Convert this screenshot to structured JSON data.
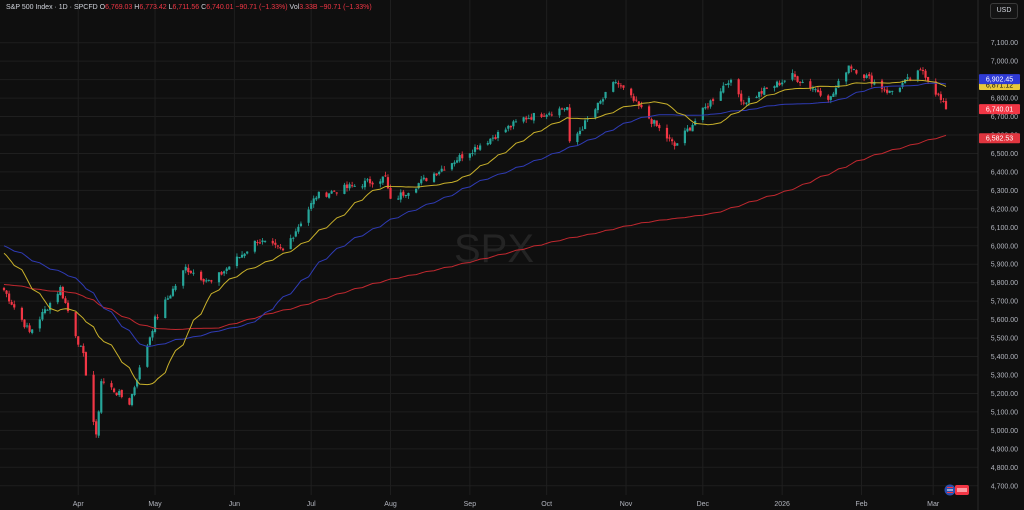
{
  "header": {
    "symbol": "S&P 500 Index · 1D · SPCFD",
    "open_label": "O",
    "open": "6,769.03",
    "high_label": "H",
    "high": "6,773.42",
    "low_label": "L",
    "low": "6,711.56",
    "close_label": "C",
    "close": "6,740.01",
    "change": "−90.71 (−1.33%)",
    "vol_label": "Vol",
    "vol": "3.33B",
    "vol_change": "−90.71 (−1.33%)",
    "currency": "USD"
  },
  "watermark": "SPX",
  "colors": {
    "up": "#26a69a",
    "down": "#f23645",
    "ma_fast": "#c9b12b",
    "ma_mid": "#2f3bb5",
    "ma_slow": "#c0282f",
    "grid": "#1f1f1f",
    "axis_text": "#b2b5be"
  },
  "chart_data": {
    "type": "candlestick",
    "y_axis": {
      "min": 4650,
      "max": 7250,
      "ticks": [
        4700,
        4800,
        4900,
        5000,
        5100,
        5200,
        5300,
        5400,
        5500,
        5600,
        5700,
        5800,
        5900,
        6000,
        6100,
        6200,
        6300,
        6400,
        6500,
        6600,
        6700,
        6800,
        6900,
        7000,
        7100
      ],
      "tick_labels": [
        "4,700.00",
        "4,800.00",
        "4,900.00",
        "5,000.00",
        "5,100.00",
        "5,200.00",
        "5,300.00",
        "5,400.00",
        "5,500.00",
        "5,600.00",
        "5,700.00",
        "5,800.00",
        "5,900.00",
        "6,000.00",
        "6,100.00",
        "6,200.00",
        "6,300.00",
        "6,400.00",
        "6,500.00",
        "6,600.00",
        "6,700.00",
        "6,800.00",
        "6,900.00",
        "7,000.00",
        "7,100.00"
      ]
    },
    "x_axis": {
      "months": [
        {
          "label": "Apr",
          "date": "2025-04-01"
        },
        {
          "label": "May",
          "date": "2025-05-01"
        },
        {
          "label": "Jun",
          "date": "2025-06-01"
        },
        {
          "label": "Jul",
          "date": "2025-07-01"
        },
        {
          "label": "Aug",
          "date": "2025-08-01"
        },
        {
          "label": "Sep",
          "date": "2025-09-01"
        },
        {
          "label": "Oct",
          "date": "2025-10-01"
        },
        {
          "label": "Nov",
          "date": "2025-11-01"
        },
        {
          "label": "Dec",
          "date": "2025-12-01"
        },
        {
          "label": "2026",
          "date": "2026-01-01"
        },
        {
          "label": "Feb",
          "date": "2026-02-01"
        },
        {
          "label": "Mar",
          "date": "2026-03-01"
        }
      ]
    },
    "price_anchors": [
      {
        "date": "2025-03-03",
        "close": 5760
      },
      {
        "date": "2025-03-13",
        "close": 5530
      },
      {
        "date": "2025-03-25",
        "close": 5770
      },
      {
        "date": "2025-04-03",
        "close": 5400
      },
      {
        "date": "2025-04-08",
        "close": 4960
      },
      {
        "date": "2025-04-10",
        "close": 5270
      },
      {
        "date": "2025-04-21",
        "close": 5150
      },
      {
        "date": "2025-05-01",
        "close": 5600
      },
      {
        "date": "2025-05-13",
        "close": 5880
      },
      {
        "date": "2025-05-23",
        "close": 5800
      },
      {
        "date": "2025-06-10",
        "close": 6030
      },
      {
        "date": "2025-06-20",
        "close": 5970
      },
      {
        "date": "2025-07-03",
        "close": 6270
      },
      {
        "date": "2025-07-30",
        "close": 6370
      },
      {
        "date": "2025-08-01",
        "close": 6240
      },
      {
        "date": "2025-08-28",
        "close": 6480
      },
      {
        "date": "2025-09-22",
        "close": 6690
      },
      {
        "date": "2025-10-09",
        "close": 6750
      },
      {
        "date": "2025-10-10",
        "close": 6550
      },
      {
        "date": "2025-10-28",
        "close": 6890
      },
      {
        "date": "2025-11-20",
        "close": 6540
      },
      {
        "date": "2025-12-11",
        "close": 6900
      },
      {
        "date": "2025-12-17",
        "close": 6780
      },
      {
        "date": "2026-01-05",
        "close": 6920
      },
      {
        "date": "2026-01-20",
        "close": 6800
      },
      {
        "date": "2026-01-27",
        "close": 6980
      },
      {
        "date": "2026-02-12",
        "close": 6830
      },
      {
        "date": "2026-02-25",
        "close": 6950
      },
      {
        "date": "2026-03-06",
        "close": 6740
      }
    ],
    "moving_averages": [
      {
        "name": "MA fast",
        "value": 6871.12,
        "label": "6,871.12"
      },
      {
        "name": "MA mid",
        "value": 6902.45,
        "label": "6,902.45"
      },
      {
        "name": "MA slow",
        "value": 6582.53,
        "label": "6,582.53"
      }
    ],
    "last_price": {
      "value": 6740.01,
      "label": "6,740.01"
    }
  }
}
